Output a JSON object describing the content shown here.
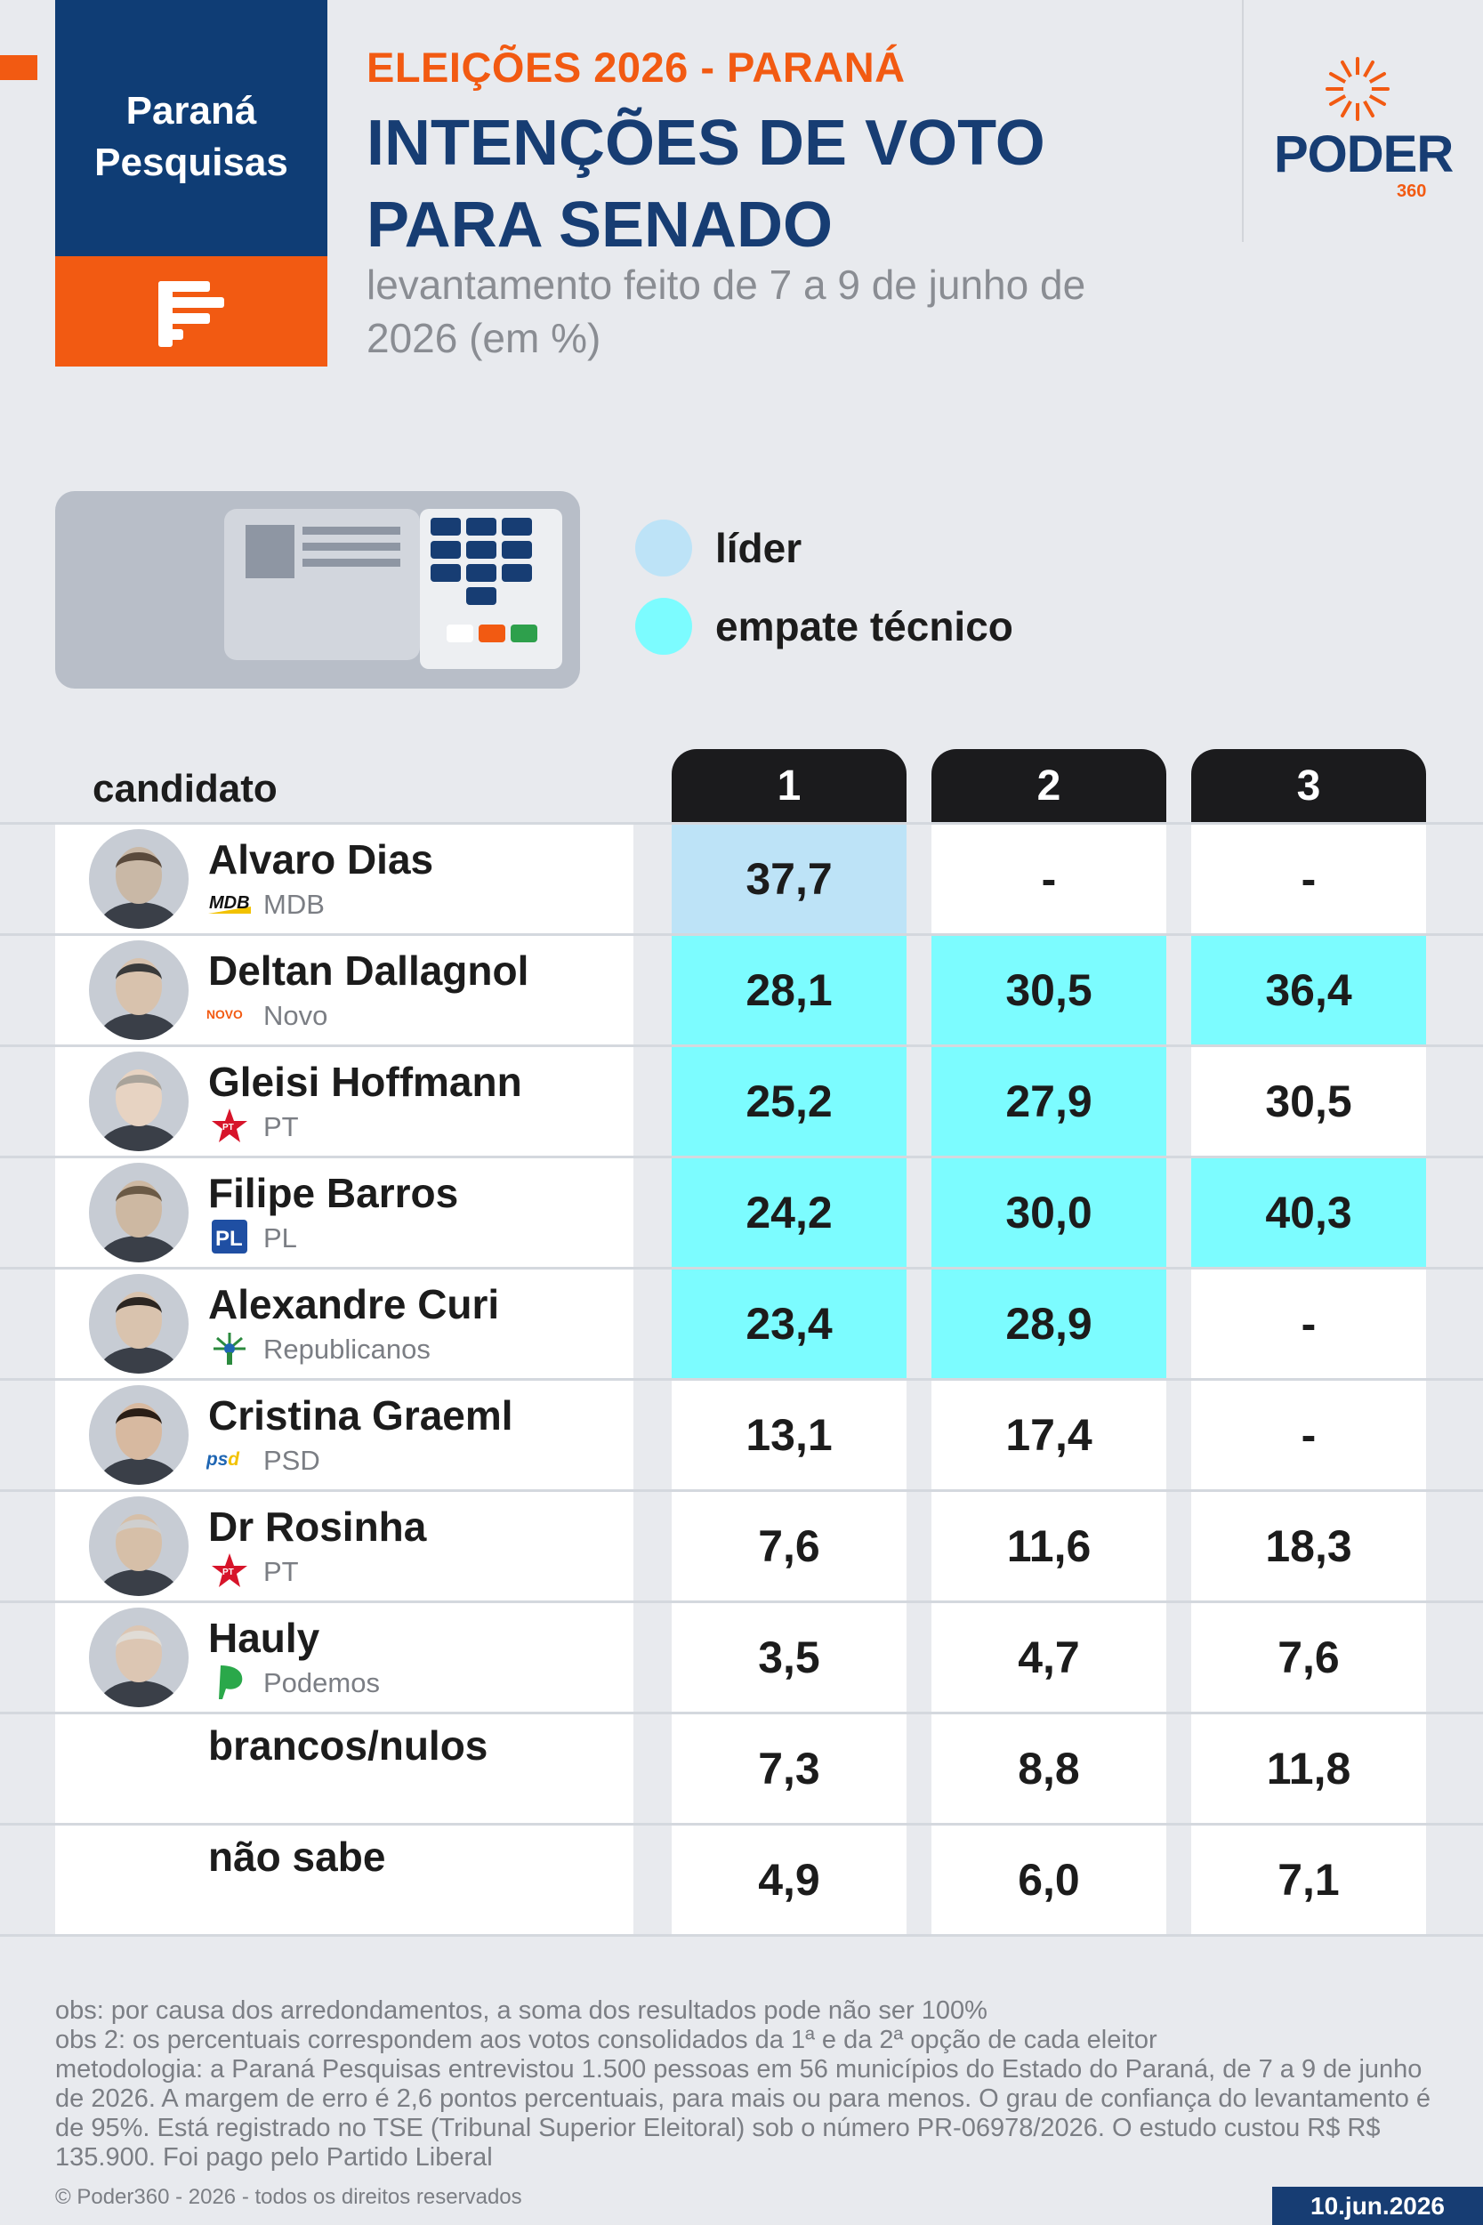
{
  "brand": {
    "pollster_line1": "Paraná",
    "pollster_line2": "Pesquisas",
    "publisher": "PODER",
    "publisher_suffix": "360"
  },
  "header": {
    "kicker": "ELEIÇÕES 2026 - PARANÁ",
    "title": "INTENÇÕES DE VOTO PARA SENADO",
    "subtitle": "levantamento feito de 7 a 9 de junho de 2026 (em %)"
  },
  "legend": {
    "lider": {
      "label": "líder",
      "color": "#bde3f7"
    },
    "empate": {
      "label": "empate técnico",
      "color": "#7cfcff"
    }
  },
  "chart_data": {
    "type": "table",
    "row_header": "candidato",
    "columns": [
      "1",
      "2",
      "3"
    ],
    "rows": [
      {
        "name": "Alvaro Dias",
        "party": "MDB",
        "party_icon": "mdb-logo",
        "values": [
          "37,7",
          "-",
          "-"
        ],
        "highlight": [
          "lider",
          null,
          null
        ]
      },
      {
        "name": "Deltan Dallagnol",
        "party": "Novo",
        "party_icon": "novo-logo",
        "values": [
          "28,1",
          "30,5",
          "36,4"
        ],
        "highlight": [
          "empate",
          "empate",
          "empate"
        ]
      },
      {
        "name": "Gleisi Hoffmann",
        "party": "PT",
        "party_icon": "pt-star-logo",
        "values": [
          "25,2",
          "27,9",
          "30,5"
        ],
        "highlight": [
          "empate",
          "empate",
          null
        ]
      },
      {
        "name": "Filipe Barros",
        "party": "PL",
        "party_icon": "pl-logo",
        "values": [
          "24,2",
          "30,0",
          "40,3"
        ],
        "highlight": [
          "empate",
          "empate",
          "empate"
        ]
      },
      {
        "name": "Alexandre Curi",
        "party": "Republicanos",
        "party_icon": "republicanos-logo",
        "values": [
          "23,4",
          "28,9",
          "-"
        ],
        "highlight": [
          "empate",
          "empate",
          null
        ]
      },
      {
        "name": "Cristina Graeml",
        "party": "PSD",
        "party_icon": "psd-logo",
        "values": [
          "13,1",
          "17,4",
          "-"
        ],
        "highlight": [
          null,
          null,
          null
        ]
      },
      {
        "name": "Dr Rosinha",
        "party": "PT",
        "party_icon": "pt-star-logo",
        "values": [
          "7,6",
          "11,6",
          "18,3"
        ],
        "highlight": [
          null,
          null,
          null
        ]
      },
      {
        "name": "Hauly",
        "party": "Podemos",
        "party_icon": "podemos-logo",
        "values": [
          "3,5",
          "4,7",
          "7,6"
        ],
        "highlight": [
          null,
          null,
          null
        ]
      },
      {
        "name": "brancos/nulos",
        "party": "",
        "party_icon": "",
        "values": [
          "7,3",
          "8,8",
          "11,8"
        ],
        "highlight": [
          null,
          null,
          null
        ]
      },
      {
        "name": "não sabe",
        "party": "",
        "party_icon": "",
        "values": [
          "4,9",
          "6,0",
          "7,1"
        ],
        "highlight": [
          null,
          null,
          null
        ]
      }
    ]
  },
  "footer": {
    "note1": "obs: por causa dos arredondamentos, a soma dos resultados pode não ser 100%",
    "note2": "obs 2: os percentuais correspondem aos votos consolidados da 1ª e da 2ª opção de cada eleitor",
    "methodology": "metodologia: a Paraná Pesquisas entrevistou 1.500 pessoas em 56 municípios do Estado do Paraná, de 7 a 9 de junho de 2026. A margem de erro é 2,6 pontos percentuais, para mais ou para menos. O grau de confiança do levantamento é de 95%. Está registrado no TSE (Tribunal Superior Eleitoral) sob o número PR-06978/2026. O estudo custou R$ R$ 135.900. Foi pago pelo Partido Liberal",
    "copyright": "© Poder360 - 2026 - todos os direitos reservados",
    "date": "10.jun.2026"
  },
  "colors": {
    "navy": "#173d73",
    "orange": "#f25a12",
    "lider": "#bde3f7",
    "empate": "#7cfcff"
  }
}
